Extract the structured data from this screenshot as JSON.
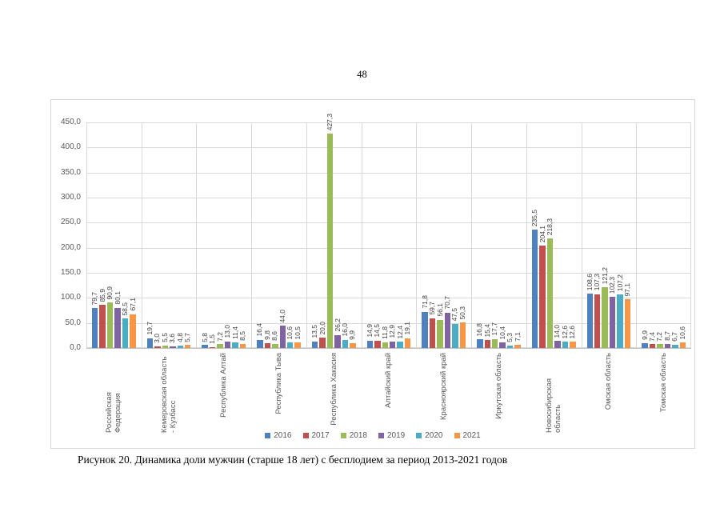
{
  "page": {
    "number": "48"
  },
  "caption": {
    "text": "Рисунок 20. Динамика доли мужчин (старше 18 лет) с бесплодием за период 2013-2021 годов"
  },
  "chart_data": {
    "type": "bar",
    "title": "",
    "xlabel": "",
    "ylabel": "",
    "ylim": [
      0,
      450
    ],
    "ytick_step": 50,
    "grid": true,
    "legend_position": "bottom",
    "value_labels": true,
    "decimal_separator": ",",
    "categories": [
      "Российская Федерация",
      "Кемеровская область - Кузбасс",
      "Республика Алтай",
      "Республика Тыва",
      "Республика Хакасия",
      "Алтайский край",
      "Красноярский край",
      "Иркутская область",
      "Новосибирская область",
      "Омская область",
      "Томская область"
    ],
    "series": [
      {
        "name": "2016",
        "color": "#4e81bd",
        "values": [
          79.7,
          19.7,
          5.8,
          16.4,
          13.5,
          14.9,
          71.8,
          16.8,
          235.5,
          108.6,
          9.9
        ]
      },
      {
        "name": "2017",
        "color": "#c0504d",
        "values": [
          85.9,
          3.0,
          1.5,
          9.8,
          20.0,
          14.5,
          59.7,
          15.4,
          204.1,
          107.3,
          7.4
        ]
      },
      {
        "name": "2018",
        "color": "#9bbb59",
        "values": [
          90.9,
          5.5,
          7.2,
          8.6,
          427.3,
          11.8,
          56.1,
          17.7,
          218.3,
          121.2,
          7.2
        ]
      },
      {
        "name": "2019",
        "color": "#8064a2",
        "values": [
          80.1,
          3.6,
          13.0,
          44.0,
          26.2,
          12.9,
          70.7,
          10.4,
          14.0,
          102.3,
          8.7
        ]
      },
      {
        "name": "2020",
        "color": "#4bacc6",
        "values": [
          58.5,
          4.8,
          11.4,
          10.6,
          16.0,
          12.4,
          47.5,
          5.3,
          12.6,
          107.2,
          6.7
        ]
      },
      {
        "name": "2021",
        "color": "#f79646",
        "values": [
          67.1,
          5.7,
          8.5,
          10.5,
          9.9,
          19.1,
          50.3,
          7.1,
          12.6,
          97.1,
          10.6
        ]
      }
    ]
  }
}
